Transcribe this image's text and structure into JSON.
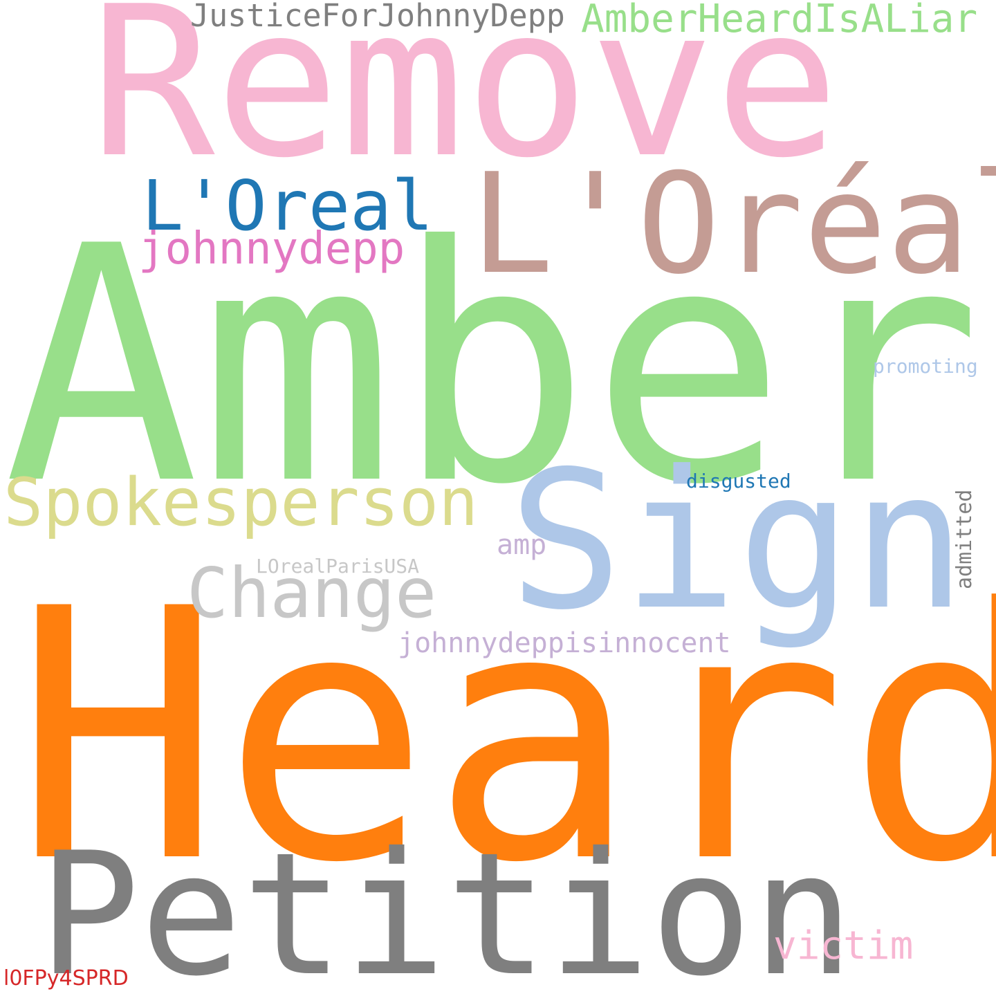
{
  "cloud": {
    "background": "#ffffff",
    "words": [
      {
        "text": "Remove",
        "color": "#f7b6d2"
      },
      {
        "text": "Amber",
        "color": "#98df8a"
      },
      {
        "text": "Heard",
        "color": "#ff7f0e"
      },
      {
        "text": "Petition",
        "color": "#7f7f7f"
      },
      {
        "text": "L'Oréal",
        "color": "#c49c94"
      },
      {
        "text": "Sign",
        "color": "#aec7e8"
      },
      {
        "text": "Spokesperson",
        "color": "#dbdb8d"
      },
      {
        "text": "Change",
        "color": "#c7c7c7"
      },
      {
        "text": "L'Oreal",
        "color": "#1f77b4"
      },
      {
        "text": "johnnydepp",
        "color": "#e377c2"
      },
      {
        "text": "JusticeForJohnnyDepp",
        "color": "#7f7f7f"
      },
      {
        "text": "AmberHeardIsALiar",
        "color": "#98df8a"
      },
      {
        "text": "promoting",
        "color": "#aec7e8"
      },
      {
        "text": "disgusted",
        "color": "#1f77b4"
      },
      {
        "text": "amp",
        "color": "#c5b0d5"
      },
      {
        "text": "LOrealParisUSA",
        "color": "#c7c7c7"
      },
      {
        "text": "johnnydeppisinnocent",
        "color": "#c5b0d5"
      },
      {
        "text": "admitted",
        "color": "#7f7f7f"
      },
      {
        "text": "victim",
        "color": "#f7b6d2"
      },
      {
        "text": "l0FPy4SPRD",
        "color": "#d62728"
      }
    ]
  }
}
